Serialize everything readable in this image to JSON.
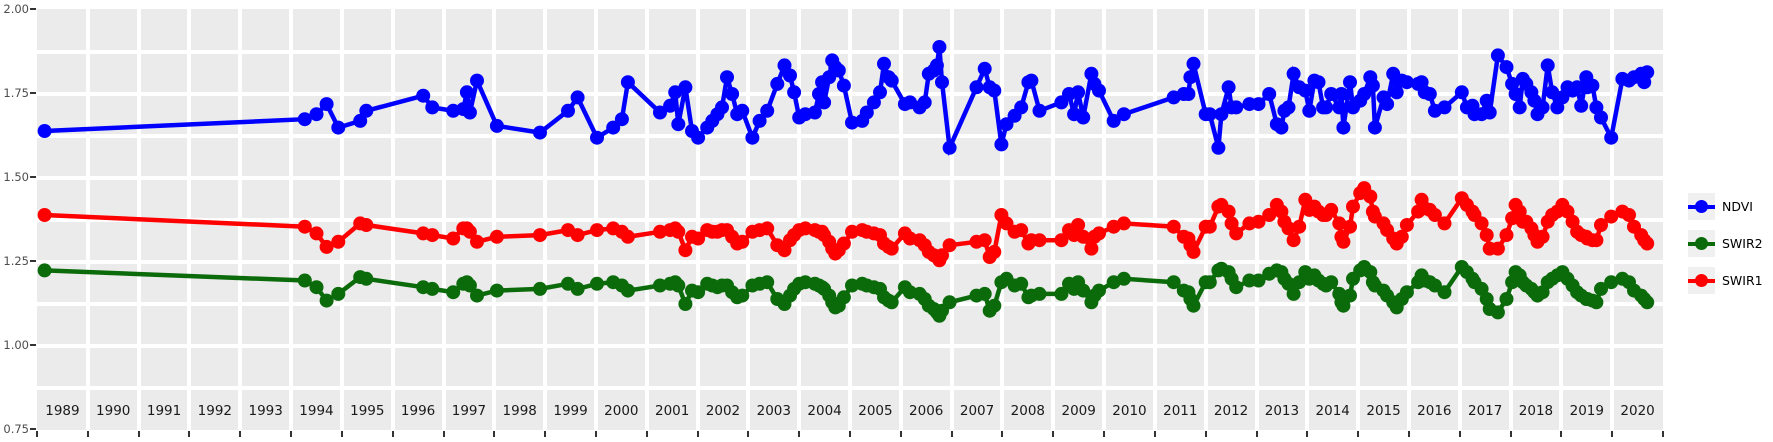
{
  "chart_data": {
    "type": "scatter",
    "subtype": "points-with-lines",
    "title": "",
    "x_axis": {
      "label": "",
      "tick_labels": [
        "1989",
        "1990",
        "1991",
        "1992",
        "1993",
        "1994",
        "1995",
        "1996",
        "1997",
        "1998",
        "1999",
        "2000",
        "2001",
        "2002",
        "2003",
        "2004",
        "2005",
        "2006",
        "2007",
        "2008",
        "2009",
        "2010",
        "2011",
        "2012",
        "2013",
        "2014",
        "2015",
        "2016",
        "2017",
        "2018",
        "2019",
        "2020"
      ],
      "range": [
        1989,
        2021
      ],
      "grid": "vertical line at every year boundary"
    },
    "y_axis": {
      "label": "",
      "tick_labels": [
        "2.00",
        "1.75",
        "1.50",
        "1.25",
        "1.00",
        "0.75"
      ],
      "tick_values": [
        2.0,
        1.75,
        1.5,
        1.25,
        1.0,
        0.75
      ],
      "range": [
        0.75,
        2.0
      ],
      "minor_grid_step": 0.125
    },
    "legend": {
      "position": "right",
      "entries": [
        {
          "label": "NDVI",
          "color": "#0000FF"
        },
        {
          "label": "SWIR2",
          "color": "#0B6B0B"
        },
        {
          "label": "SWIR1",
          "color": "#FF0000"
        }
      ]
    },
    "series_names": [
      "NDVI",
      "SWIR1",
      "SWIR2"
    ],
    "points_format": [
      "decimal_year",
      "NDVI",
      "SWIR1",
      "SWIR2"
    ],
    "points": [
      [
        1989.15,
        1.64,
        1.39,
        1.225
      ],
      [
        1994.27,
        1.675,
        1.355,
        1.195
      ],
      [
        1994.5,
        1.69,
        1.335,
        1.175
      ],
      [
        1994.7,
        1.72,
        1.295,
        1.135
      ],
      [
        1994.93,
        1.65,
        1.31,
        1.155
      ],
      [
        1995.36,
        1.67,
        1.365,
        1.205
      ],
      [
        1995.48,
        1.7,
        1.36,
        1.2
      ],
      [
        1996.6,
        1.745,
        1.335,
        1.175
      ],
      [
        1996.78,
        1.71,
        1.33,
        1.17
      ],
      [
        1997.19,
        1.7,
        1.32,
        1.16
      ],
      [
        1997.39,
        1.705,
        1.35,
        1.185
      ],
      [
        1997.46,
        1.755,
        1.35,
        1.19
      ],
      [
        1997.52,
        1.695,
        1.34,
        1.18
      ],
      [
        1997.66,
        1.79,
        1.31,
        1.15
      ],
      [
        1998.05,
        1.655,
        1.325,
        1.165
      ],
      [
        1998.9,
        1.635,
        1.33,
        1.17
      ],
      [
        1999.45,
        1.7,
        1.345,
        1.185
      ],
      [
        1999.64,
        1.74,
        1.33,
        1.17
      ],
      [
        2000.02,
        1.62,
        1.345,
        1.185
      ],
      [
        2000.34,
        1.65,
        1.35,
        1.19
      ],
      [
        2000.51,
        1.675,
        1.34,
        1.18
      ],
      [
        2000.63,
        1.785,
        1.325,
        1.165
      ],
      [
        2001.26,
        1.695,
        1.34,
        1.18
      ],
      [
        2001.46,
        1.715,
        1.345,
        1.185
      ],
      [
        2001.56,
        1.755,
        1.35,
        1.19
      ],
      [
        2001.62,
        1.66,
        1.34,
        1.18
      ],
      [
        2001.76,
        1.77,
        1.285,
        1.125
      ],
      [
        2001.89,
        1.64,
        1.325,
        1.165
      ],
      [
        2002.01,
        1.62,
        1.32,
        1.16
      ],
      [
        2002.19,
        1.65,
        1.345,
        1.185
      ],
      [
        2002.29,
        1.67,
        1.34,
        1.18
      ],
      [
        2002.39,
        1.69,
        1.34,
        1.175
      ],
      [
        2002.48,
        1.71,
        1.345,
        1.18
      ],
      [
        2002.58,
        1.8,
        1.345,
        1.18
      ],
      [
        2002.68,
        1.75,
        1.325,
        1.16
      ],
      [
        2002.78,
        1.69,
        1.305,
        1.145
      ],
      [
        2002.88,
        1.7,
        1.31,
        1.15
      ],
      [
        2003.08,
        1.62,
        1.34,
        1.18
      ],
      [
        2003.22,
        1.67,
        1.345,
        1.185
      ],
      [
        2003.37,
        1.7,
        1.35,
        1.19
      ],
      [
        2003.57,
        1.78,
        1.3,
        1.14
      ],
      [
        2003.71,
        1.835,
        1.285,
        1.125
      ],
      [
        2003.82,
        1.805,
        1.315,
        1.15
      ],
      [
        2003.9,
        1.755,
        1.33,
        1.17
      ],
      [
        2004.0,
        1.68,
        1.345,
        1.185
      ],
      [
        2004.12,
        1.69,
        1.35,
        1.19
      ],
      [
        2004.31,
        1.695,
        1.345,
        1.185
      ],
      [
        2004.39,
        1.75,
        1.34,
        1.18
      ],
      [
        2004.45,
        1.785,
        1.34,
        1.175
      ],
      [
        2004.49,
        1.725,
        1.33,
        1.17
      ],
      [
        2004.59,
        1.8,
        1.31,
        1.15
      ],
      [
        2004.65,
        1.85,
        1.29,
        1.13
      ],
      [
        2004.71,
        1.83,
        1.275,
        1.115
      ],
      [
        2004.78,
        1.82,
        1.285,
        1.12
      ],
      [
        2004.88,
        1.775,
        1.305,
        1.145
      ],
      [
        2005.04,
        1.665,
        1.34,
        1.18
      ],
      [
        2005.24,
        1.67,
        1.345,
        1.185
      ],
      [
        2005.33,
        1.695,
        1.34,
        1.18
      ],
      [
        2005.47,
        1.725,
        1.335,
        1.175
      ],
      [
        2005.59,
        1.755,
        1.33,
        1.17
      ],
      [
        2005.67,
        1.84,
        1.305,
        1.145
      ],
      [
        2005.76,
        1.8,
        1.295,
        1.135
      ],
      [
        2005.82,
        1.79,
        1.29,
        1.13
      ],
      [
        2006.08,
        1.72,
        1.335,
        1.175
      ],
      [
        2006.18,
        1.725,
        1.32,
        1.16
      ],
      [
        2006.37,
        1.71,
        1.315,
        1.155
      ],
      [
        2006.47,
        1.725,
        1.3,
        1.14
      ],
      [
        2006.55,
        1.81,
        1.28,
        1.12
      ],
      [
        2006.65,
        1.82,
        1.27,
        1.11
      ],
      [
        2006.71,
        1.835,
        1.265,
        1.1
      ],
      [
        2006.76,
        1.89,
        1.255,
        1.09
      ],
      [
        2006.81,
        1.785,
        1.27,
        1.105
      ],
      [
        2006.96,
        1.59,
        1.3,
        1.13
      ],
      [
        2007.49,
        1.77,
        1.31,
        1.15
      ],
      [
        2007.65,
        1.825,
        1.315,
        1.155
      ],
      [
        2007.75,
        1.77,
        1.265,
        1.105
      ],
      [
        2007.84,
        1.76,
        1.28,
        1.12
      ],
      [
        2007.98,
        1.6,
        1.39,
        1.19
      ],
      [
        2008.08,
        1.66,
        1.365,
        1.2
      ],
      [
        2008.24,
        1.685,
        1.34,
        1.18
      ],
      [
        2008.37,
        1.71,
        1.345,
        1.185
      ],
      [
        2008.51,
        1.785,
        1.305,
        1.145
      ],
      [
        2008.57,
        1.79,
        1.315,
        1.15
      ],
      [
        2008.73,
        1.7,
        1.315,
        1.155
      ],
      [
        2009.16,
        1.725,
        1.315,
        1.155
      ],
      [
        2009.31,
        1.75,
        1.345,
        1.185
      ],
      [
        2009.41,
        1.69,
        1.33,
        1.17
      ],
      [
        2009.49,
        1.755,
        1.36,
        1.19
      ],
      [
        2009.59,
        1.68,
        1.325,
        1.165
      ],
      [
        2009.75,
        1.81,
        1.29,
        1.13
      ],
      [
        2009.81,
        1.78,
        1.325,
        1.15
      ],
      [
        2009.9,
        1.76,
        1.335,
        1.165
      ],
      [
        2010.19,
        1.67,
        1.355,
        1.19
      ],
      [
        2010.39,
        1.69,
        1.365,
        1.2
      ],
      [
        2011.37,
        1.74,
        1.355,
        1.19
      ],
      [
        2011.57,
        1.75,
        1.325,
        1.165
      ],
      [
        2011.66,
        1.75,
        1.32,
        1.16
      ],
      [
        2011.7,
        1.8,
        1.3,
        1.14
      ],
      [
        2011.76,
        1.84,
        1.28,
        1.12
      ],
      [
        2012.0,
        1.69,
        1.355,
        1.19
      ],
      [
        2012.08,
        1.69,
        1.355,
        1.19
      ],
      [
        2012.25,
        1.59,
        1.415,
        1.225
      ],
      [
        2012.31,
        1.69,
        1.42,
        1.23
      ],
      [
        2012.45,
        1.77,
        1.4,
        1.22
      ],
      [
        2012.51,
        1.71,
        1.365,
        1.2
      ],
      [
        2012.6,
        1.71,
        1.335,
        1.175
      ],
      [
        2012.86,
        1.72,
        1.365,
        1.195
      ],
      [
        2013.04,
        1.72,
        1.37,
        1.195
      ],
      [
        2013.25,
        1.75,
        1.39,
        1.215
      ],
      [
        2013.4,
        1.66,
        1.42,
        1.225
      ],
      [
        2013.49,
        1.65,
        1.4,
        1.22
      ],
      [
        2013.55,
        1.7,
        1.37,
        1.2
      ],
      [
        2013.63,
        1.71,
        1.35,
        1.185
      ],
      [
        2013.73,
        1.81,
        1.315,
        1.155
      ],
      [
        2013.84,
        1.77,
        1.355,
        1.19
      ],
      [
        2013.96,
        1.76,
        1.435,
        1.22
      ],
      [
        2014.04,
        1.7,
        1.405,
        1.2
      ],
      [
        2014.14,
        1.79,
        1.415,
        1.21
      ],
      [
        2014.22,
        1.785,
        1.4,
        1.195
      ],
      [
        2014.31,
        1.71,
        1.39,
        1.185
      ],
      [
        2014.37,
        1.71,
        1.39,
        1.18
      ],
      [
        2014.47,
        1.75,
        1.405,
        1.19
      ],
      [
        2014.63,
        1.71,
        1.365,
        1.155
      ],
      [
        2014.67,
        1.75,
        1.325,
        1.13
      ],
      [
        2014.71,
        1.65,
        1.31,
        1.12
      ],
      [
        2014.84,
        1.785,
        1.355,
        1.15
      ],
      [
        2014.9,
        1.71,
        1.415,
        1.2
      ],
      [
        2015.04,
        1.73,
        1.455,
        1.225
      ],
      [
        2015.12,
        1.75,
        1.47,
        1.235
      ],
      [
        2015.24,
        1.8,
        1.445,
        1.22
      ],
      [
        2015.29,
        1.775,
        1.4,
        1.19
      ],
      [
        2015.33,
        1.65,
        1.385,
        1.18
      ],
      [
        2015.5,
        1.74,
        1.365,
        1.165
      ],
      [
        2015.57,
        1.72,
        1.345,
        1.15
      ],
      [
        2015.69,
        1.81,
        1.32,
        1.13
      ],
      [
        2015.76,
        1.755,
        1.305,
        1.115
      ],
      [
        2015.86,
        1.79,
        1.325,
        1.14
      ],
      [
        2015.96,
        1.785,
        1.36,
        1.16
      ],
      [
        2016.18,
        1.78,
        1.4,
        1.19
      ],
      [
        2016.25,
        1.785,
        1.435,
        1.21
      ],
      [
        2016.31,
        1.755,
        1.41,
        1.195
      ],
      [
        2016.41,
        1.75,
        1.405,
        1.19
      ],
      [
        2016.51,
        1.7,
        1.39,
        1.18
      ],
      [
        2016.7,
        1.71,
        1.365,
        1.16
      ],
      [
        2017.04,
        1.755,
        1.44,
        1.235
      ],
      [
        2017.14,
        1.71,
        1.42,
        1.22
      ],
      [
        2017.25,
        1.715,
        1.4,
        1.2
      ],
      [
        2017.29,
        1.69,
        1.39,
        1.19
      ],
      [
        2017.43,
        1.69,
        1.365,
        1.17
      ],
      [
        2017.53,
        1.73,
        1.33,
        1.14
      ],
      [
        2017.59,
        1.695,
        1.29,
        1.11
      ],
      [
        2017.75,
        1.865,
        1.29,
        1.1
      ],
      [
        2017.92,
        1.83,
        1.33,
        1.14
      ],
      [
        2018.03,
        1.78,
        1.38,
        1.19
      ],
      [
        2018.1,
        1.75,
        1.42,
        1.22
      ],
      [
        2018.18,
        1.71,
        1.4,
        1.21
      ],
      [
        2018.24,
        1.795,
        1.37,
        1.19
      ],
      [
        2018.31,
        1.78,
        1.37,
        1.18
      ],
      [
        2018.41,
        1.755,
        1.35,
        1.17
      ],
      [
        2018.47,
        1.73,
        1.33,
        1.16
      ],
      [
        2018.53,
        1.69,
        1.31,
        1.15
      ],
      [
        2018.63,
        1.71,
        1.325,
        1.16
      ],
      [
        2018.73,
        1.835,
        1.37,
        1.19
      ],
      [
        2018.82,
        1.755,
        1.39,
        1.2
      ],
      [
        2018.92,
        1.71,
        1.4,
        1.21
      ],
      [
        2019.02,
        1.74,
        1.42,
        1.22
      ],
      [
        2019.12,
        1.77,
        1.4,
        1.2
      ],
      [
        2019.22,
        1.76,
        1.37,
        1.18
      ],
      [
        2019.31,
        1.77,
        1.34,
        1.16
      ],
      [
        2019.39,
        1.715,
        1.33,
        1.15
      ],
      [
        2019.49,
        1.8,
        1.325,
        1.14
      ],
      [
        2019.51,
        1.77,
        1.32,
        1.14
      ],
      [
        2019.61,
        1.775,
        1.315,
        1.135
      ],
      [
        2019.69,
        1.71,
        1.315,
        1.13
      ],
      [
        2019.78,
        1.68,
        1.36,
        1.17
      ],
      [
        2019.98,
        1.62,
        1.385,
        1.19
      ],
      [
        2020.2,
        1.795,
        1.4,
        1.2
      ],
      [
        2020.33,
        1.79,
        1.39,
        1.19
      ],
      [
        2020.43,
        1.8,
        1.355,
        1.165
      ],
      [
        2020.57,
        1.81,
        1.33,
        1.15
      ],
      [
        2020.63,
        1.785,
        1.315,
        1.14
      ],
      [
        2020.69,
        1.815,
        1.305,
        1.13
      ]
    ],
    "styling": {
      "panel_background": "#EBEBEB",
      "gridline_color": "#FFFFFF",
      "axis_text_color": "#4D4D4D",
      "x_label_color": "#1A1A1A",
      "tick_color": "#333333",
      "page_background": "#FFFFFF",
      "legend_key_background": "#F0F0F0"
    }
  }
}
